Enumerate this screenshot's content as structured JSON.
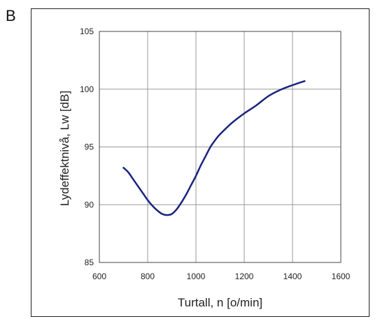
{
  "panel_label": "B",
  "chart_data": {
    "type": "line",
    "title": "",
    "xlabel": "Turtall, n [o/min]",
    "ylabel": "Lydeffektnivå, Lw [dB]",
    "xlim": [
      600,
      1600
    ],
    "ylim": [
      85,
      105
    ],
    "xticks": [
      600,
      800,
      1000,
      1200,
      1400,
      1600
    ],
    "yticks": [
      85,
      90,
      95,
      100,
      105
    ],
    "grid": true,
    "legend": "none",
    "line_color": "#1a237e",
    "series": [
      {
        "x": [
          700,
          720,
          740,
          760,
          780,
          800,
          820,
          840,
          860,
          880,
          900,
          920,
          940,
          960,
          980,
          1000,
          1020,
          1040,
          1060,
          1080,
          1100,
          1150,
          1200,
          1250,
          1300,
          1350,
          1400,
          1450
        ],
        "y": [
          93.2,
          92.8,
          92.2,
          91.6,
          91.0,
          90.4,
          89.9,
          89.5,
          89.2,
          89.1,
          89.2,
          89.6,
          90.2,
          90.9,
          91.7,
          92.5,
          93.4,
          94.2,
          95.0,
          95.6,
          96.1,
          97.1,
          97.9,
          98.6,
          99.4,
          99.95,
          100.35,
          100.7
        ]
      }
    ]
  }
}
